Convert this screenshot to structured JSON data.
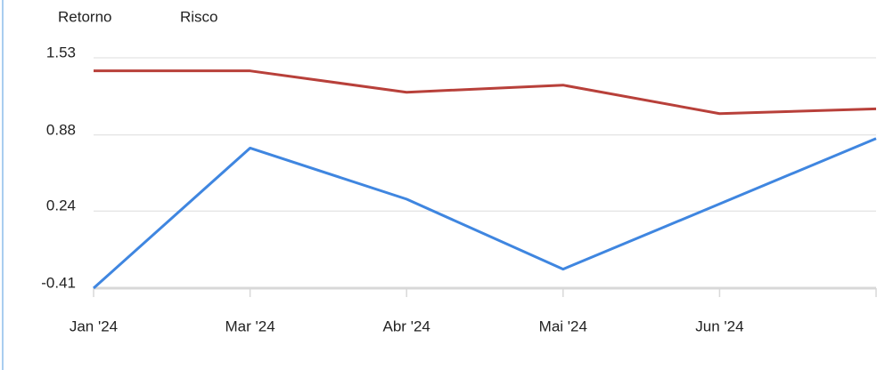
{
  "chart_data": {
    "type": "line",
    "categories": [
      "Jan '24",
      "Mar '24",
      "Abr '24",
      "Mai '24",
      "Jun '24",
      null
    ],
    "series": [
      {
        "name": "Retorno",
        "color": "#3f86e0",
        "values": [
          -0.41,
          0.77,
          0.34,
          -0.25,
          0.3,
          0.85
        ]
      },
      {
        "name": "Risco",
        "color": "#b8403a",
        "values": [
          1.42,
          1.42,
          1.24,
          1.3,
          1.06,
          1.1
        ]
      }
    ],
    "ylim": [
      -0.41,
      1.53
    ],
    "yticks": [
      -0.41,
      0.24,
      0.88,
      1.53
    ],
    "grid": true
  }
}
